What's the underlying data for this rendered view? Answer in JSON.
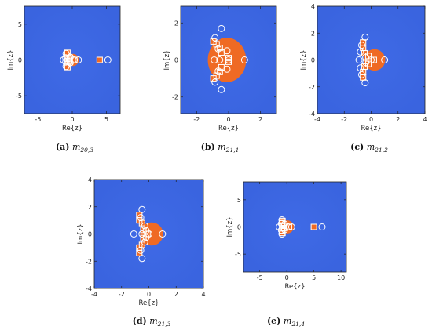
{
  "colors": {
    "background": "#3a64df",
    "region": "#ef6a24",
    "marker": "#ffffff"
  },
  "panels": [
    {
      "id": "a",
      "caption": {
        "tag": "(a)",
        "name": "m",
        "sub": "20,3"
      },
      "xlabel": "Re{z}",
      "ylabel": "Im{z}",
      "xlim": [
        -7,
        7
      ],
      "ylim": [
        -7.5,
        7.5
      ],
      "xticks": [
        -5,
        0,
        5
      ],
      "yticks": [
        -5,
        0,
        5
      ],
      "region": {
        "cx": 0.1,
        "cy": 0,
        "r": 0.85
      },
      "circles": [
        [
          -0.9,
          0.9
        ],
        [
          -0.95,
          0.3
        ],
        [
          -0.95,
          -0.3
        ],
        [
          -0.9,
          -0.9
        ],
        [
          -1.3,
          0
        ],
        [
          -0.3,
          0.4
        ],
        [
          -0.3,
          -0.4
        ],
        [
          0.3,
          0
        ],
        [
          0.9,
          0
        ],
        [
          5.2,
          0
        ]
      ],
      "squares": [
        [
          -0.7,
          1.0
        ],
        [
          -0.75,
          0.6
        ],
        [
          -0.75,
          0.2
        ],
        [
          -0.75,
          -0.2
        ],
        [
          -0.75,
          -0.6
        ],
        [
          -0.7,
          -1.0
        ],
        [
          -0.4,
          0.2
        ],
        [
          -0.4,
          -0.2
        ],
        [
          0.3,
          0
        ],
        [
          4.0,
          0
        ]
      ]
    },
    {
      "id": "b",
      "caption": {
        "tag": "(b)",
        "name": "m",
        "sub": "21,1"
      },
      "xlabel": "Re{z}",
      "ylabel": "Im{z}",
      "xlim": [
        -3,
        3
      ],
      "ylim": [
        -2.9,
        2.9
      ],
      "xticks": [
        -2,
        0,
        2
      ],
      "yticks": [
        -2,
        0,
        2
      ],
      "region": {
        "cx": -0.1,
        "cy": 0,
        "r": 1.2
      },
      "circles": [
        [
          -0.85,
          1.2
        ],
        [
          -0.45,
          1.7
        ],
        [
          -0.45,
          -1.6
        ],
        [
          -0.85,
          -1.2
        ],
        [
          -0.65,
          0.6
        ],
        [
          -0.55,
          0
        ],
        [
          -0.65,
          -0.6
        ],
        [
          -0.1,
          0.5
        ],
        [
          -0.1,
          -0.5
        ],
        [
          0,
          0
        ],
        [
          1.0,
          0
        ],
        [
          -0.9,
          0
        ]
      ],
      "squares": [
        [
          -0.95,
          1.0
        ],
        [
          -0.75,
          0.85
        ],
        [
          -0.55,
          0.65
        ],
        [
          -0.95,
          -1.0
        ],
        [
          -0.75,
          -0.85
        ],
        [
          -0.55,
          -0.65
        ],
        [
          -0.45,
          0.4
        ],
        [
          -0.45,
          -0.4
        ],
        [
          0,
          0.1
        ],
        [
          0,
          -0.1
        ]
      ]
    },
    {
      "id": "c",
      "caption": {
        "tag": "(c)",
        "name": "m",
        "sub": "21,2"
      },
      "xlabel": "Re{z}",
      "ylabel": "Im{z}",
      "xlim": [
        -4,
        4
      ],
      "ylim": [
        -4,
        4
      ],
      "xticks": [
        -4,
        -2,
        0,
        2,
        4
      ],
      "yticks": [
        -4,
        -2,
        0,
        2,
        4
      ],
      "region": {
        "cx": 0.25,
        "cy": 0,
        "r": 0.8
      },
      "circles": [
        [
          -0.45,
          1.7
        ],
        [
          -0.7,
          1.1
        ],
        [
          -0.8,
          0.6
        ],
        [
          -0.8,
          -0.6
        ],
        [
          -0.7,
          -1.1
        ],
        [
          -0.45,
          -1.7
        ],
        [
          -0.4,
          0.2
        ],
        [
          -0.4,
          -0.2
        ],
        [
          0,
          0
        ],
        [
          1.0,
          0
        ],
        [
          -0.9,
          0
        ]
      ],
      "squares": [
        [
          -0.6,
          1.3
        ],
        [
          -0.6,
          0.9
        ],
        [
          -0.5,
          0.5
        ],
        [
          -0.6,
          -1.3
        ],
        [
          -0.6,
          -0.9
        ],
        [
          -0.5,
          -0.5
        ],
        [
          -0.2,
          0.3
        ],
        [
          -0.2,
          -0.3
        ],
        [
          0.2,
          0
        ]
      ]
    },
    {
      "id": "d",
      "caption": {
        "tag": "(d)",
        "name": "m",
        "sub": "21,3"
      },
      "xlabel": "Re{z}",
      "ylabel": "Im{z}",
      "xlim": [
        -4,
        4
      ],
      "ylim": [
        -4,
        4
      ],
      "xticks": [
        -4,
        -2,
        0,
        2,
        4
      ],
      "yticks": [
        -4,
        -2,
        0,
        2,
        4
      ],
      "region": {
        "cx": 0.2,
        "cy": 0,
        "r": 0.85
      },
      "circles": [
        [
          -0.5,
          1.8
        ],
        [
          -0.6,
          1.2
        ],
        [
          -0.3,
          0.6
        ],
        [
          -0.3,
          -0.6
        ],
        [
          -0.6,
          -1.2
        ],
        [
          -0.5,
          -1.8
        ],
        [
          -0.2,
          0.25
        ],
        [
          -0.2,
          -0.25
        ],
        [
          0,
          0
        ],
        [
          1.0,
          0
        ],
        [
          -0.5,
          0
        ],
        [
          -1.1,
          0
        ]
      ],
      "squares": [
        [
          -0.7,
          1.4
        ],
        [
          -0.7,
          1.0
        ],
        [
          -0.5,
          0.8
        ],
        [
          -0.7,
          -1.4
        ],
        [
          -0.7,
          -1.0
        ],
        [
          -0.5,
          -0.8
        ],
        [
          -0.4,
          0.3
        ],
        [
          -0.4,
          -0.3
        ],
        [
          -0.1,
          0
        ]
      ]
    },
    {
      "id": "e",
      "caption": {
        "tag": "(e)",
        "name": "m",
        "sub": "21,4"
      },
      "xlabel": "Re{z}",
      "ylabel": "Im{z}",
      "xlim": [
        -8,
        11
      ],
      "ylim": [
        -8.3,
        8.3
      ],
      "xticks": [
        -5,
        0,
        5,
        10
      ],
      "yticks": [
        -5,
        0,
        5
      ],
      "region": {
        "cx": 0.1,
        "cy": 0,
        "r": 1.2
      },
      "circles": [
        [
          -0.9,
          1.3
        ],
        [
          -1.0,
          0.6
        ],
        [
          -1.0,
          -0.6
        ],
        [
          -0.9,
          -1.3
        ],
        [
          -1.4,
          0
        ],
        [
          -0.4,
          0.5
        ],
        [
          -0.4,
          -0.5
        ],
        [
          0.3,
          0
        ],
        [
          0.9,
          0
        ],
        [
          6.5,
          0
        ]
      ],
      "squares": [
        [
          -0.8,
          1.1
        ],
        [
          -0.85,
          0.7
        ],
        [
          -0.85,
          0.25
        ],
        [
          -0.85,
          -0.25
        ],
        [
          -0.85,
          -0.7
        ],
        [
          -0.8,
          -1.1
        ],
        [
          -0.5,
          0.2
        ],
        [
          -0.5,
          -0.2
        ],
        [
          0.4,
          0
        ],
        [
          5.0,
          0
        ]
      ]
    }
  ]
}
